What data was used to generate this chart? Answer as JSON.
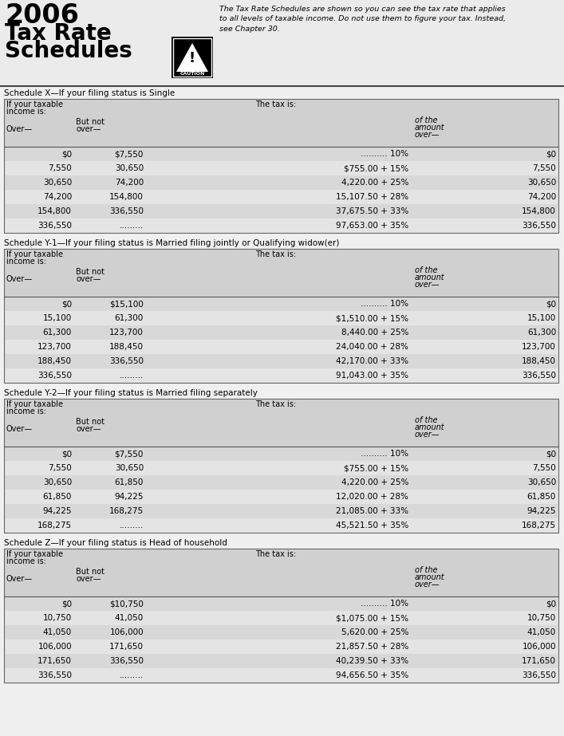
{
  "title_year": "2006",
  "title_line2": "Tax Rate",
  "title_line3": "Schedules",
  "caution_text_lines": [
    "The Tax Rate Schedules are shown so you can see the tax rate that applies",
    "to all levels of taxable income. Do not use them to figure your tax. Instead,",
    "see Chapter 30."
  ],
  "bg_color": "#ebebeb",
  "header_bg": "#d0d0d0",
  "row_bg_even": "#d8d8d8",
  "row_bg_odd": "#e4e4e4",
  "border_color": "#777777",
  "schedules": [
    {
      "title": "Schedule X—If your filing status is Single",
      "rows": [
        [
          "$0",
          "$7,550",
          ".......... 10%",
          "$0"
        ],
        [
          "7,550",
          "30,650",
          "$755.00 + 15%",
          "7,550"
        ],
        [
          "30,650",
          "74,200",
          "4,220.00 + 25%",
          "30,650"
        ],
        [
          "74,200",
          "154,800",
          "15,107.50 + 28%",
          "74,200"
        ],
        [
          "154,800",
          "336,550",
          "37,675.50 + 33%",
          "154,800"
        ],
        [
          "336,550",
          ".........",
          "97,653.00 + 35%",
          "336,550"
        ]
      ]
    },
    {
      "title": "Schedule Y-1—If your filing status is Married filing jointly or Qualifying widow(er)",
      "rows": [
        [
          "$0",
          "$15,100",
          ".......... 10%",
          "$0"
        ],
        [
          "15,100",
          "61,300",
          "$1,510.00 + 15%",
          "15,100"
        ],
        [
          "61,300",
          "123,700",
          "8,440.00 + 25%",
          "61,300"
        ],
        [
          "123,700",
          "188,450",
          "24,040.00 + 28%",
          "123,700"
        ],
        [
          "188,450",
          "336,550",
          "42,170.00 + 33%",
          "188,450"
        ],
        [
          "336,550",
          ".........",
          "91,043.00 + 35%",
          "336,550"
        ]
      ]
    },
    {
      "title": "Schedule Y-2—If your filing status is Married filing separately",
      "rows": [
        [
          "$0",
          "$7,550",
          ".......... 10%",
          "$0"
        ],
        [
          "7,550",
          "30,650",
          "$755.00 + 15%",
          "7,550"
        ],
        [
          "30,650",
          "61,850",
          "4,220.00 + 25%",
          "30,650"
        ],
        [
          "61,850",
          "94,225",
          "12,020.00 + 28%",
          "61,850"
        ],
        [
          "94,225",
          "168,275",
          "21,085.00 + 33%",
          "94,225"
        ],
        [
          "168,275",
          ".........",
          "45,521.50 + 35%",
          "168,275"
        ]
      ]
    },
    {
      "title": "Schedule Z—If your filing status is Head of household",
      "rows": [
        [
          "$0",
          "$10,750",
          ".......... 10%",
          "$0"
        ],
        [
          "10,750",
          "41,050",
          "$1,075.00 + 15%",
          "10,750"
        ],
        [
          "41,050",
          "106,000",
          "5,620.00 + 25%",
          "41,050"
        ],
        [
          "106,000",
          "171,650",
          "21,857.50 + 28%",
          "106,000"
        ],
        [
          "171,650",
          "336,550",
          "40,239.50 + 33%",
          "171,650"
        ],
        [
          "336,550",
          ".........",
          "94,656.50 + 35%",
          "336,550"
        ]
      ]
    }
  ]
}
